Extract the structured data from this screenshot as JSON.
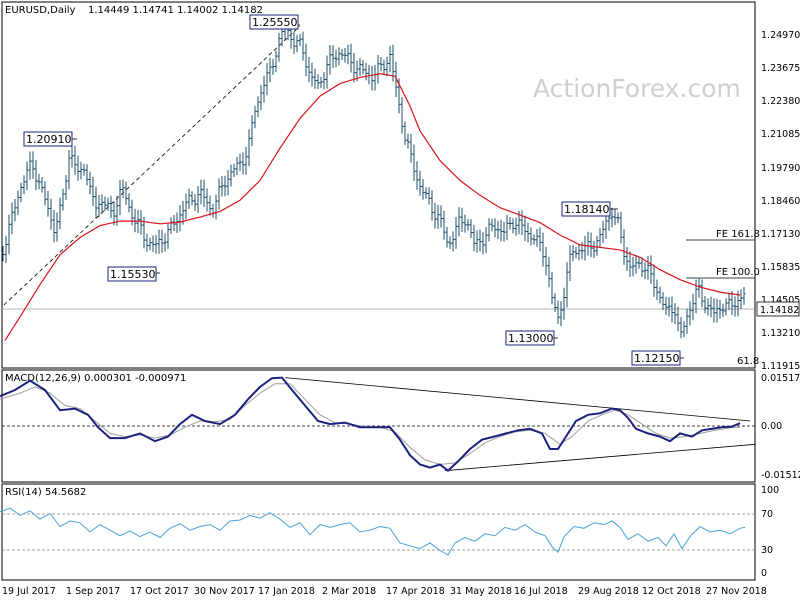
{
  "watermark": "ActionForex.com",
  "header": {
    "symbol": "EURUSD,Daily",
    "ohlc": "1.14449 1.14741 1.14002 1.14182"
  },
  "colors": {
    "candles": "#1e4d6b",
    "ma": "#d8141c",
    "macd": "#1a237e",
    "signal": "#9e9e9e",
    "rsi": "#4aa3d8",
    "frame": "#000000"
  },
  "chart_data": [
    {
      "type": "candlestick",
      "panel": "price",
      "title": "EURUSD,Daily",
      "ylim": [
        1.1132,
        1.2591
      ],
      "y_ticks": [
        "1.24970",
        "1.23675",
        "1.22380",
        "1.21085",
        "1.19790",
        "1.18460",
        "1.17130",
        "1.15835",
        "1.14505",
        "1.13210",
        "1.11915"
      ],
      "x_ticks": [
        "19 Jul 2017",
        "1 Sep 2017",
        "17 Oct 2017",
        "30 Nov 2017",
        "17 Jan 2018",
        "2 Mar 2018",
        "17 Apr 2018",
        "31 May 2018",
        "16 Jul 2018",
        "29 Aug 2018",
        "12 Oct 2018",
        "27 Nov 2018"
      ],
      "last_price": "1.14182",
      "price_path": [
        [
          0,
          1.156
        ],
        [
          10,
          1.17
        ],
        [
          20,
          1.185
        ],
        [
          32,
          1.195
        ],
        [
          45,
          1.18
        ],
        [
          55,
          1.168
        ],
        [
          60,
          1.175
        ],
        [
          70,
          1.2
        ],
        [
          78,
          1.19
        ],
        [
          84,
          1.195
        ],
        [
          90,
          1.183
        ],
        [
          96,
          1.178
        ],
        [
          102,
          1.18
        ],
        [
          112,
          1.174
        ],
        [
          122,
          1.185
        ],
        [
          130,
          1.176
        ],
        [
          138,
          1.17
        ],
        [
          146,
          1.164
        ],
        [
          155,
          1.161
        ],
        [
          170,
          1.168
        ],
        [
          185,
          1.178
        ],
        [
          200,
          1.183
        ],
        [
          212,
          1.176
        ],
        [
          225,
          1.188
        ],
        [
          240,
          1.195
        ],
        [
          248,
          1.2
        ],
        [
          255,
          1.217
        ],
        [
          262,
          1.225
        ],
        [
          270,
          1.232
        ],
        [
          278,
          1.243
        ],
        [
          286,
          1.25
        ],
        [
          295,
          1.243
        ],
        [
          302,
          1.242
        ],
        [
          310,
          1.23
        ],
        [
          318,
          1.226
        ],
        [
          328,
          1.235
        ],
        [
          340,
          1.24
        ],
        [
          352,
          1.235
        ],
        [
          362,
          1.232
        ],
        [
          372,
          1.23
        ],
        [
          380,
          1.233
        ],
        [
          390,
          1.238
        ],
        [
          398,
          1.22
        ],
        [
          405,
          1.206
        ],
        [
          412,
          1.195
        ],
        [
          420,
          1.186
        ],
        [
          430,
          1.178
        ],
        [
          440,
          1.172
        ],
        [
          448,
          1.162
        ],
        [
          458,
          1.17
        ],
        [
          466,
          1.173
        ],
        [
          474,
          1.162
        ],
        [
          484,
          1.165
        ],
        [
          494,
          1.17
        ],
        [
          504,
          1.167
        ],
        [
          514,
          1.172
        ],
        [
          524,
          1.168
        ],
        [
          534,
          1.165
        ],
        [
          545,
          1.158
        ],
        [
          552,
          1.14
        ],
        [
          558,
          1.132
        ],
        [
          564,
          1.143
        ],
        [
          572,
          1.16
        ],
        [
          582,
          1.16
        ],
        [
          592,
          1.162
        ],
        [
          600,
          1.164
        ],
        [
          606,
          1.172
        ],
        [
          612,
          1.175
        ],
        [
          618,
          1.17
        ],
        [
          624,
          1.16
        ],
        [
          630,
          1.152
        ],
        [
          640,
          1.155
        ],
        [
          650,
          1.15
        ],
        [
          658,
          1.143
        ],
        [
          666,
          1.135
        ],
        [
          674,
          1.138
        ],
        [
          680,
          1.124
        ],
        [
          688,
          1.135
        ],
        [
          698,
          1.144
        ],
        [
          706,
          1.138
        ],
        [
          714,
          1.134
        ],
        [
          722,
          1.138
        ],
        [
          730,
          1.137
        ],
        [
          738,
          1.14
        ],
        [
          745,
          1.1418
        ]
      ],
      "ma_path": [
        [
          5,
          1.1235
        ],
        [
          20,
          1.133
        ],
        [
          40,
          1.146
        ],
        [
          60,
          1.158
        ],
        [
          80,
          1.165
        ],
        [
          100,
          1.1698
        ],
        [
          120,
          1.1716
        ],
        [
          140,
          1.1716
        ],
        [
          160,
          1.1705
        ],
        [
          180,
          1.1712
        ],
        [
          200,
          1.1732
        ],
        [
          220,
          1.1755
        ],
        [
          240,
          1.18
        ],
        [
          260,
          1.188
        ],
        [
          280,
          1.201
        ],
        [
          300,
          1.213
        ],
        [
          320,
          1.222
        ],
        [
          340,
          1.227
        ],
        [
          360,
          1.2295
        ],
        [
          380,
          1.231
        ],
        [
          395,
          1.23
        ],
        [
          410,
          1.218
        ],
        [
          420,
          1.208
        ],
        [
          440,
          1.196
        ],
        [
          460,
          1.188
        ],
        [
          480,
          1.182
        ],
        [
          500,
          1.177
        ],
        [
          520,
          1.174
        ],
        [
          540,
          1.171
        ],
        [
          560,
          1.166
        ],
        [
          580,
          1.162
        ],
        [
          600,
          1.161
        ],
        [
          620,
          1.16
        ],
        [
          640,
          1.157
        ],
        [
          660,
          1.152
        ],
        [
          680,
          1.148
        ],
        [
          700,
          1.145
        ],
        [
          720,
          1.143
        ],
        [
          740,
          1.1418
        ]
      ],
      "annotations": [
        {
          "label": "1.25550",
          "x": "17 Jan 2018"
        },
        {
          "label": "1.20910",
          "x": "Sep 2017"
        },
        {
          "label": "1.15530",
          "x": "Nov 2017"
        },
        {
          "label": "1.18140",
          "x": "Sep 2018"
        },
        {
          "label": "1.13000",
          "x": "Aug 2018"
        },
        {
          "label": "1.12150",
          "x": "Nov 2018"
        }
      ],
      "levels": [
        "FE 161.8",
        "FE 100.0",
        "61.8"
      ],
      "trendline": "dashed rising line from Jul 2017 low to Jan 2018 high"
    },
    {
      "type": "line",
      "panel": "MACD",
      "title": "MACD(12,26,9) 0.000301 -0.000971",
      "ylim": [
        -0.018,
        0.0168
      ],
      "y_ticks": [
        "0.015178",
        "0.00",
        "-0.015126"
      ],
      "macd_path": [
        [
          0,
          0.009
        ],
        [
          15,
          0.011
        ],
        [
          30,
          0.014
        ],
        [
          45,
          0.011
        ],
        [
          60,
          0.0045
        ],
        [
          75,
          0.005
        ],
        [
          88,
          0.003
        ],
        [
          98,
          -0.001
        ],
        [
          110,
          -0.0045
        ],
        [
          125,
          -0.0045
        ],
        [
          140,
          -0.003
        ],
        [
          155,
          -0.0055
        ],
        [
          168,
          -0.004
        ],
        [
          180,
          0.0
        ],
        [
          192,
          0.003
        ],
        [
          205,
          0.001
        ],
        [
          220,
          0.0
        ],
        [
          235,
          0.003
        ],
        [
          248,
          0.008
        ],
        [
          260,
          0.012
        ],
        [
          272,
          0.0148
        ],
        [
          282,
          0.015
        ],
        [
          292,
          0.011
        ],
        [
          305,
          0.006
        ],
        [
          318,
          0.001
        ],
        [
          330,
          0.0
        ],
        [
          345,
          0.0005
        ],
        [
          360,
          -0.001
        ],
        [
          375,
          -0.001
        ],
        [
          390,
          -0.001
        ],
        [
          400,
          -0.005
        ],
        [
          410,
          -0.01
        ],
        [
          420,
          -0.013
        ],
        [
          430,
          -0.014
        ],
        [
          440,
          -0.013
        ],
        [
          448,
          -0.015
        ],
        [
          458,
          -0.012
        ],
        [
          470,
          -0.008
        ],
        [
          482,
          -0.005
        ],
        [
          494,
          -0.004
        ],
        [
          506,
          -0.003
        ],
        [
          518,
          -0.002
        ],
        [
          530,
          -0.0015
        ],
        [
          542,
          -0.003
        ],
        [
          550,
          -0.008
        ],
        [
          558,
          -0.008
        ],
        [
          566,
          -0.004
        ],
        [
          576,
          0.001
        ],
        [
          588,
          0.003
        ],
        [
          600,
          0.0035
        ],
        [
          612,
          0.005
        ],
        [
          620,
          0.0045
        ],
        [
          628,
          0.002
        ],
        [
          636,
          -0.0015
        ],
        [
          648,
          -0.003
        ],
        [
          660,
          -0.004
        ],
        [
          670,
          -0.0055
        ],
        [
          680,
          -0.003
        ],
        [
          692,
          -0.004
        ],
        [
          702,
          -0.002
        ],
        [
          712,
          -0.0015
        ],
        [
          722,
          -0.001
        ],
        [
          732,
          -0.0008
        ],
        [
          740,
          0.0003
        ]
      ],
      "signal_path": [
        [
          0,
          0.008
        ],
        [
          20,
          0.01
        ],
        [
          35,
          0.012
        ],
        [
          50,
          0.01
        ],
        [
          65,
          0.006
        ],
        [
          80,
          0.005
        ],
        [
          95,
          0.001
        ],
        [
          110,
          -0.003
        ],
        [
          125,
          -0.004
        ],
        [
          140,
          -0.0035
        ],
        [
          155,
          -0.0045
        ],
        [
          170,
          -0.0035
        ],
        [
          185,
          -0.001
        ],
        [
          200,
          0.001
        ],
        [
          215,
          0.0008
        ],
        [
          230,
          0.0015
        ],
        [
          245,
          0.006
        ],
        [
          260,
          0.01
        ],
        [
          275,
          0.013
        ],
        [
          290,
          0.013
        ],
        [
          305,
          0.008
        ],
        [
          320,
          0.003
        ],
        [
          335,
          0.0005
        ],
        [
          350,
          0.0
        ],
        [
          365,
          -0.0008
        ],
        [
          380,
          -0.001
        ],
        [
          395,
          -0.0025
        ],
        [
          410,
          -0.0075
        ],
        [
          425,
          -0.0115
        ],
        [
          440,
          -0.013
        ],
        [
          455,
          -0.0125
        ],
        [
          470,
          -0.0095
        ],
        [
          485,
          -0.006
        ],
        [
          500,
          -0.004
        ],
        [
          515,
          -0.0025
        ],
        [
          530,
          -0.002
        ],
        [
          545,
          -0.003
        ],
        [
          560,
          -0.0065
        ],
        [
          572,
          -0.004
        ],
        [
          588,
          0.001
        ],
        [
          602,
          0.003
        ],
        [
          615,
          0.0045
        ],
        [
          628,
          0.003
        ],
        [
          642,
          0.0
        ],
        [
          656,
          -0.003
        ],
        [
          670,
          -0.0045
        ],
        [
          685,
          -0.004
        ],
        [
          700,
          -0.003
        ],
        [
          715,
          -0.002
        ],
        [
          730,
          -0.0012
        ],
        [
          740,
          -0.001
        ]
      ],
      "upper_line": [
        [
          285,
          0.015
        ],
        [
          750,
          0.001
        ]
      ],
      "lower_line": [
        [
          445,
          -0.015
        ],
        [
          755,
          -0.0065
        ]
      ]
    },
    {
      "type": "line",
      "panel": "RSI",
      "title": "RSI(14) 54.5682",
      "ylim": [
        0,
        100
      ],
      "y_ticks": [
        "100",
        "70",
        "30",
        "0"
      ],
      "rsi_path": [
        [
          0,
          72
        ],
        [
          10,
          76
        ],
        [
          20,
          68
        ],
        [
          30,
          73
        ],
        [
          40,
          64
        ],
        [
          50,
          70
        ],
        [
          60,
          56
        ],
        [
          70,
          62
        ],
        [
          80,
          60
        ],
        [
          90,
          50
        ],
        [
          100,
          58
        ],
        [
          110,
          52
        ],
        [
          120,
          46
        ],
        [
          130,
          51
        ],
        [
          140,
          45
        ],
        [
          150,
          50
        ],
        [
          160,
          44
        ],
        [
          170,
          54
        ],
        [
          180,
          59
        ],
        [
          190,
          52
        ],
        [
          200,
          56
        ],
        [
          210,
          58
        ],
        [
          220,
          52
        ],
        [
          230,
          62
        ],
        [
          240,
          63
        ],
        [
          250,
          68
        ],
        [
          260,
          65
        ],
        [
          270,
          71
        ],
        [
          280,
          64
        ],
        [
          290,
          55
        ],
        [
          300,
          60
        ],
        [
          310,
          47
        ],
        [
          320,
          58
        ],
        [
          330,
          55
        ],
        [
          340,
          58
        ],
        [
          350,
          60
        ],
        [
          360,
          50
        ],
        [
          370,
          52
        ],
        [
          380,
          56
        ],
        [
          390,
          54
        ],
        [
          400,
          38
        ],
        [
          410,
          35
        ],
        [
          420,
          32
        ],
        [
          430,
          38
        ],
        [
          440,
          30
        ],
        [
          448,
          25
        ],
        [
          455,
          38
        ],
        [
          465,
          44
        ],
        [
          475,
          40
        ],
        [
          485,
          48
        ],
        [
          495,
          46
        ],
        [
          505,
          55
        ],
        [
          515,
          52
        ],
        [
          525,
          58
        ],
        [
          535,
          50
        ],
        [
          545,
          46
        ],
        [
          552,
          34
        ],
        [
          558,
          28
        ],
        [
          564,
          45
        ],
        [
          574,
          56
        ],
        [
          584,
          54
        ],
        [
          594,
          60
        ],
        [
          604,
          58
        ],
        [
          612,
          62
        ],
        [
          620,
          55
        ],
        [
          628,
          42
        ],
        [
          638,
          48
        ],
        [
          648,
          40
        ],
        [
          658,
          44
        ],
        [
          666,
          35
        ],
        [
          674,
          48
        ],
        [
          682,
          32
        ],
        [
          690,
          45
        ],
        [
          700,
          56
        ],
        [
          710,
          50
        ],
        [
          720,
          52
        ],
        [
          730,
          48
        ],
        [
          740,
          54
        ],
        [
          745,
          55
        ]
      ]
    }
  ]
}
